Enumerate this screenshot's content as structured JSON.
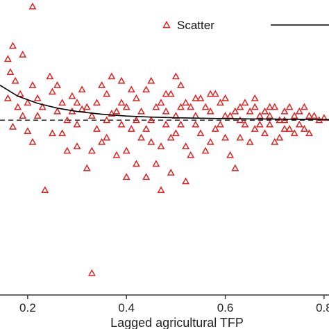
{
  "chart_data": {
    "type": "scatter",
    "xlabel": "Lagged agricultural TFP",
    "ylabel": "",
    "xlim": [
      0.144,
      0.81
    ],
    "ylim": [
      -0.8,
      0.55
    ],
    "x_ticks": [
      {
        "value": 0.2,
        "label": "0.2"
      },
      {
        "value": 0.4,
        "label": "0.4"
      },
      {
        "value": 0.6,
        "label": "0.6"
      },
      {
        "value": 0.8,
        "label": "0.8"
      }
    ],
    "grid": false,
    "legend_position": "top-right",
    "colors": {
      "scatter": "#dd2222",
      "fit_line": "#000000",
      "axis": "#333333"
    },
    "reference_line": {
      "y": 0.0,
      "style": "dashed"
    },
    "series": [
      {
        "name": "Scatter",
        "kind": "scatter",
        "marker": "triangle-open",
        "points": [
          [
            0.21,
            0.52
          ],
          [
            0.17,
            0.34
          ],
          [
            0.16,
            0.28
          ],
          [
            0.19,
            0.3
          ],
          [
            0.165,
            0.22
          ],
          [
            0.175,
            0.18
          ],
          [
            0.185,
            0.12
          ],
          [
            0.16,
            0.1
          ],
          [
            0.2,
            0.08
          ],
          [
            0.21,
            0.16
          ],
          [
            0.22,
            0.1
          ],
          [
            0.18,
            0.06
          ],
          [
            0.19,
            0.02
          ],
          [
            0.17,
            -0.03
          ],
          [
            0.2,
            -0.05
          ],
          [
            0.21,
            -0.1
          ],
          [
            0.22,
            0.02
          ],
          [
            0.23,
            0.06
          ],
          [
            0.235,
            -0.32
          ],
          [
            0.245,
            0.2
          ],
          [
            0.25,
            0.13
          ],
          [
            0.26,
            0.04
          ],
          [
            0.27,
            0.08
          ],
          [
            0.27,
            -0.06
          ],
          [
            0.28,
            0.0
          ],
          [
            0.29,
            0.11
          ],
          [
            0.3,
            -0.02
          ],
          [
            0.3,
            -0.12
          ],
          [
            0.31,
            0.05
          ],
          [
            0.32,
            -0.22
          ],
          [
            0.33,
            0.02
          ],
          [
            0.33,
            -0.7
          ],
          [
            0.34,
            0.08
          ],
          [
            0.35,
            -0.1
          ],
          [
            0.36,
            0.12
          ],
          [
            0.37,
            0.03
          ],
          [
            0.38,
            -0.16
          ],
          [
            0.39,
            0.18
          ],
          [
            0.4,
            0.06
          ],
          [
            0.41,
            -0.04
          ],
          [
            0.42,
            0.1
          ],
          [
            0.43,
            -0.08
          ],
          [
            0.44,
            0.14
          ],
          [
            0.45,
            0.0
          ],
          [
            0.46,
            -0.2
          ],
          [
            0.47,
            0.08
          ],
          [
            0.48,
            -0.02
          ],
          [
            0.49,
            0.12
          ],
          [
            0.5,
            0.02
          ],
          [
            0.5,
            -0.06
          ],
          [
            0.51,
            0.16
          ],
          [
            0.52,
            -0.12
          ],
          [
            0.53,
            0.06
          ],
          [
            0.54,
            -0.02
          ],
          [
            0.55,
            0.1
          ],
          [
            0.56,
            -0.14
          ],
          [
            0.57,
            0.04
          ],
          [
            0.58,
            -0.04
          ],
          [
            0.59,
            0.08
          ],
          [
            0.6,
            -0.08
          ],
          [
            0.61,
            0.02
          ],
          [
            0.62,
            -0.22
          ],
          [
            0.63,
            0.06
          ],
          [
            0.64,
            -0.02
          ],
          [
            0.65,
            0.04
          ],
          [
            0.66,
            -0.04
          ],
          [
            0.67,
            0.02
          ],
          [
            0.68,
            -0.06
          ],
          [
            0.69,
            0.06
          ],
          [
            0.7,
            -0.1
          ],
          [
            0.71,
            0.0
          ],
          [
            0.72,
            0.04
          ],
          [
            0.73,
            -0.04
          ],
          [
            0.74,
            0.02
          ],
          [
            0.75,
            -0.02
          ],
          [
            0.76,
            0.06
          ],
          [
            0.77,
            -0.06
          ],
          [
            0.78,
            0.02
          ],
          [
            0.79,
            0.0
          ],
          [
            0.8,
            0.01
          ],
          [
            0.25,
            -0.06
          ],
          [
            0.26,
            0.16
          ],
          [
            0.28,
            -0.14
          ],
          [
            0.29,
            0.04
          ],
          [
            0.31,
            0.14
          ],
          [
            0.32,
            0.06
          ],
          [
            0.34,
            -0.04
          ],
          [
            0.35,
            0.16
          ],
          [
            0.36,
            -0.08
          ],
          [
            0.37,
            0.2
          ],
          [
            0.38,
            0.04
          ],
          [
            0.39,
            -0.02
          ],
          [
            0.4,
            -0.14
          ],
          [
            0.41,
            0.14
          ],
          [
            0.42,
            -0.2
          ],
          [
            0.43,
            0.04
          ],
          [
            0.44,
            -0.04
          ],
          [
            0.45,
            0.18
          ],
          [
            0.46,
            0.06
          ],
          [
            0.47,
            -0.12
          ],
          [
            0.48,
            0.12
          ],
          [
            0.49,
            -0.08
          ],
          [
            0.5,
            0.2
          ],
          [
            0.51,
            -0.02
          ],
          [
            0.52,
            0.08
          ],
          [
            0.53,
            -0.16
          ],
          [
            0.54,
            0.1
          ],
          [
            0.55,
            -0.06
          ],
          [
            0.56,
            0.06
          ],
          [
            0.57,
            -0.1
          ],
          [
            0.58,
            0.12
          ],
          [
            0.59,
            -0.02
          ],
          [
            0.6,
            0.1
          ],
          [
            0.61,
            -0.16
          ],
          [
            0.62,
            0.04
          ],
          [
            0.63,
            -0.08
          ],
          [
            0.64,
            0.08
          ],
          [
            0.65,
            -0.1
          ],
          [
            0.66,
            0.06
          ],
          [
            0.67,
            -0.02
          ],
          [
            0.68,
            0.04
          ],
          [
            0.69,
            -0.02
          ],
          [
            0.7,
            0.06
          ],
          [
            0.71,
            -0.08
          ],
          [
            0.72,
            0.0
          ],
          [
            0.73,
            0.06
          ],
          [
            0.74,
            -0.06
          ],
          [
            0.75,
            0.04
          ],
          [
            0.76,
            -0.04
          ],
          [
            0.77,
            0.02
          ],
          [
            0.3,
            0.08
          ],
          [
            0.33,
            -0.14
          ],
          [
            0.36,
            0.0
          ],
          [
            0.39,
            0.08
          ],
          [
            0.42,
            0.0
          ],
          [
            0.45,
            -0.1
          ],
          [
            0.48,
            0.04
          ],
          [
            0.51,
            0.06
          ],
          [
            0.54,
            0.02
          ],
          [
            0.57,
            0.12
          ],
          [
            0.6,
            0.02
          ],
          [
            0.63,
            0.0
          ],
          [
            0.66,
            0.1
          ],
          [
            0.69,
            0.02
          ],
          [
            0.72,
            -0.04
          ],
          [
            0.49,
            -0.24
          ],
          [
            0.47,
            -0.32
          ],
          [
            0.44,
            -0.26
          ],
          [
            0.52,
            -0.28
          ],
          [
            0.4,
            -0.26
          ]
        ]
      },
      {
        "name": "",
        "kind": "line",
        "style": "solid",
        "points": [
          [
            0.144,
            0.16
          ],
          [
            0.18,
            0.11
          ],
          [
            0.22,
            0.077
          ],
          [
            0.26,
            0.055
          ],
          [
            0.3,
            0.04
          ],
          [
            0.35,
            0.027
          ],
          [
            0.4,
            0.019
          ],
          [
            0.45,
            0.014
          ],
          [
            0.5,
            0.011
          ],
          [
            0.55,
            0.009
          ],
          [
            0.6,
            0.007
          ],
          [
            0.65,
            0.006
          ],
          [
            0.7,
            0.005
          ],
          [
            0.75,
            0.004
          ],
          [
            0.81,
            0.003
          ]
        ]
      }
    ],
    "legend": [
      {
        "label": "Scatter",
        "marker": "triangle-open",
        "color": "#dd2222"
      },
      {
        "label": "",
        "marker": "line-solid",
        "color": "#000000"
      }
    ]
  }
}
